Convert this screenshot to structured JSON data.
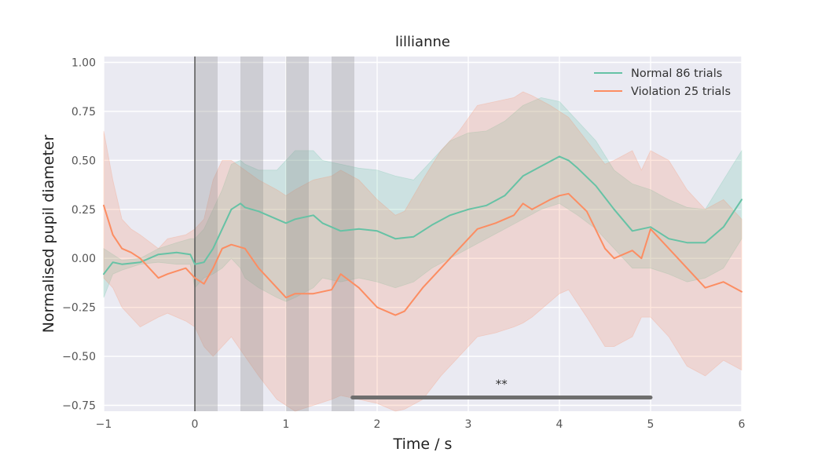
{
  "chart_data": {
    "type": "line",
    "title": "lillianne",
    "xlabel": "Time / s",
    "ylabel": "Normalised pupil diameter",
    "xlim": [
      -1,
      6
    ],
    "ylim": [
      -0.78,
      1.03
    ],
    "x_ticks": [
      -1,
      0,
      1,
      2,
      3,
      4,
      5,
      6
    ],
    "x_tick_labels": [
      "−1",
      "0",
      "1",
      "2",
      "3",
      "4",
      "5",
      "6"
    ],
    "y_ticks": [
      -0.75,
      -0.5,
      -0.25,
      0.0,
      0.25,
      0.5,
      0.75,
      1.0
    ],
    "y_tick_labels": [
      "−0.75",
      "−0.50",
      "−0.25",
      "0.00",
      "0.25",
      "0.50",
      "0.75",
      "1.00"
    ],
    "grid": true,
    "legend_position": "top-right",
    "background_color": "#eaeaf2",
    "event_line_x": 0,
    "shaded_intervals": [
      [
        0,
        0.25
      ],
      [
        0.5,
        0.75
      ],
      [
        1.0,
        1.25
      ],
      [
        1.5,
        1.75
      ]
    ],
    "significance": {
      "x_start": 1.73,
      "x_end": 5.0,
      "y": -0.71,
      "label": "**"
    },
    "series": [
      {
        "name": "Normal 86 trials",
        "color": "#66c2a5",
        "x": [
          -1.0,
          -0.9,
          -0.8,
          -0.6,
          -0.4,
          -0.2,
          -0.05,
          0.0,
          0.1,
          0.2,
          0.3,
          0.4,
          0.5,
          0.55,
          0.7,
          0.9,
          1.0,
          1.1,
          1.3,
          1.4,
          1.6,
          1.8,
          2.0,
          2.2,
          2.4,
          2.6,
          2.8,
          3.0,
          3.2,
          3.4,
          3.6,
          3.8,
          4.0,
          4.1,
          4.2,
          4.4,
          4.6,
          4.8,
          5.0,
          5.2,
          5.4,
          5.6,
          5.8,
          6.0
        ],
        "y": [
          -0.08,
          -0.02,
          -0.03,
          -0.02,
          0.02,
          0.03,
          0.02,
          -0.03,
          -0.02,
          0.05,
          0.15,
          0.25,
          0.28,
          0.26,
          0.24,
          0.2,
          0.18,
          0.2,
          0.22,
          0.18,
          0.14,
          0.15,
          0.14,
          0.1,
          0.11,
          0.17,
          0.22,
          0.25,
          0.27,
          0.32,
          0.42,
          0.47,
          0.52,
          0.5,
          0.46,
          0.37,
          0.25,
          0.14,
          0.16,
          0.1,
          0.08,
          0.08,
          0.16,
          0.3
        ],
        "lower": [
          -0.2,
          -0.08,
          -0.06,
          -0.03,
          -0.02,
          -0.03,
          -0.03,
          -0.15,
          -0.1,
          -0.08,
          -0.05,
          0.0,
          -0.05,
          -0.1,
          -0.15,
          -0.2,
          -0.22,
          -0.2,
          -0.15,
          -0.1,
          -0.12,
          -0.1,
          -0.12,
          -0.15,
          -0.12,
          -0.05,
          0.0,
          0.05,
          0.1,
          0.15,
          0.2,
          0.25,
          0.28,
          0.25,
          0.22,
          0.15,
          0.05,
          -0.05,
          -0.05,
          -0.08,
          -0.12,
          -0.1,
          -0.05,
          0.1
        ],
        "upper": [
          0.05,
          0.02,
          -0.01,
          0.0,
          0.05,
          0.08,
          0.1,
          0.1,
          0.15,
          0.25,
          0.35,
          0.48,
          0.5,
          0.48,
          0.45,
          0.45,
          0.5,
          0.55,
          0.55,
          0.5,
          0.48,
          0.46,
          0.45,
          0.42,
          0.4,
          0.5,
          0.6,
          0.64,
          0.65,
          0.7,
          0.78,
          0.82,
          0.8,
          0.75,
          0.7,
          0.6,
          0.45,
          0.38,
          0.35,
          0.3,
          0.26,
          0.25,
          0.4,
          0.55
        ]
      },
      {
        "name": "Violation 25 trials",
        "color": "#fc8d62",
        "x": [
          -1.0,
          -0.9,
          -0.8,
          -0.7,
          -0.6,
          -0.4,
          -0.3,
          -0.1,
          0.0,
          0.1,
          0.2,
          0.3,
          0.4,
          0.55,
          0.7,
          0.9,
          1.0,
          1.1,
          1.3,
          1.5,
          1.6,
          1.8,
          2.0,
          2.2,
          2.3,
          2.5,
          2.7,
          2.9,
          3.1,
          3.3,
          3.5,
          3.6,
          3.7,
          3.9,
          4.0,
          4.1,
          4.3,
          4.5,
          4.6,
          4.8,
          4.9,
          5.0,
          5.2,
          5.4,
          5.6,
          5.8,
          6.0
        ],
        "y": [
          0.27,
          0.12,
          0.05,
          0.03,
          0.0,
          -0.1,
          -0.08,
          -0.05,
          -0.1,
          -0.13,
          -0.05,
          0.05,
          0.07,
          0.05,
          -0.05,
          -0.15,
          -0.2,
          -0.18,
          -0.18,
          -0.16,
          -0.08,
          -0.15,
          -0.25,
          -0.29,
          -0.27,
          -0.15,
          -0.05,
          0.05,
          0.15,
          0.18,
          0.22,
          0.28,
          0.25,
          0.3,
          0.32,
          0.33,
          0.24,
          0.05,
          0.0,
          0.04,
          0.0,
          0.15,
          0.05,
          -0.05,
          -0.15,
          -0.12,
          -0.17
        ],
        "lower": [
          -0.1,
          -0.15,
          -0.25,
          -0.3,
          -0.35,
          -0.3,
          -0.28,
          -0.32,
          -0.35,
          -0.45,
          -0.5,
          -0.45,
          -0.4,
          -0.5,
          -0.6,
          -0.72,
          -0.75,
          -0.78,
          -0.75,
          -0.72,
          -0.7,
          -0.72,
          -0.74,
          -0.78,
          -0.77,
          -0.72,
          -0.6,
          -0.5,
          -0.4,
          -0.38,
          -0.35,
          -0.33,
          -0.3,
          -0.22,
          -0.18,
          -0.16,
          -0.3,
          -0.45,
          -0.45,
          -0.4,
          -0.3,
          -0.3,
          -0.4,
          -0.55,
          -0.6,
          -0.52,
          -0.57
        ],
        "upper": [
          0.65,
          0.4,
          0.2,
          0.15,
          0.12,
          0.05,
          0.1,
          0.12,
          0.15,
          0.2,
          0.4,
          0.5,
          0.5,
          0.45,
          0.4,
          0.35,
          0.32,
          0.35,
          0.4,
          0.42,
          0.45,
          0.4,
          0.3,
          0.22,
          0.24,
          0.4,
          0.55,
          0.65,
          0.78,
          0.8,
          0.82,
          0.85,
          0.83,
          0.78,
          0.75,
          0.72,
          0.6,
          0.48,
          0.5,
          0.55,
          0.45,
          0.55,
          0.5,
          0.35,
          0.25,
          0.3,
          0.2
        ]
      }
    ]
  }
}
